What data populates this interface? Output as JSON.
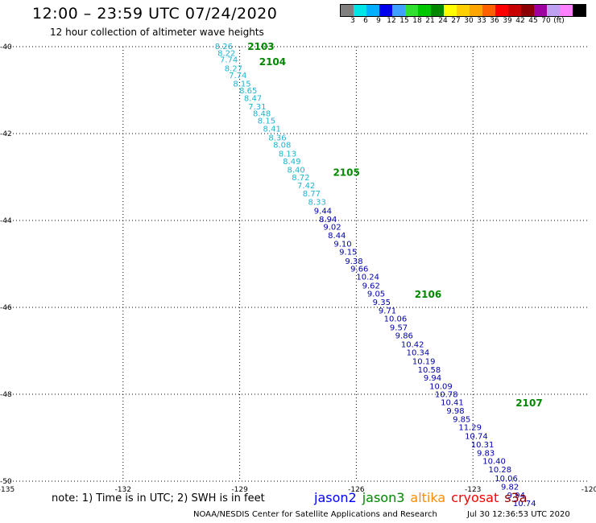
{
  "header": {
    "title": "12:00 – 23:59 UTC 07/24/2020",
    "subtitle": "12 hour collection of altimeter wave heights"
  },
  "color_scale": {
    "colors": [
      "#808080",
      "#00e5e5",
      "#00b0ff",
      "#0000ee",
      "#40a0ff",
      "#30e030",
      "#00c800",
      "#008800",
      "#ffff00",
      "#ffd000",
      "#ffa500",
      "#ff6000",
      "#ff0000",
      "#c80000",
      "#8b0000",
      "#a000a0",
      "#c0a0f0",
      "#ff80ff",
      "#000000"
    ],
    "labels": [
      "3",
      "6",
      "9",
      "12",
      "15",
      "18",
      "21",
      "24",
      "27",
      "30",
      "33",
      "36",
      "39",
      "42",
      "45",
      "70",
      "(ft)"
    ]
  },
  "footer": {
    "note": "note:  1) Time is in UTC;  2) SWH is in feet",
    "satellites": [
      {
        "name": "jason2",
        "color": "#0000ff"
      },
      {
        "name": "jason3",
        "color": "#008800"
      },
      {
        "name": "altika",
        "color": "#ff8c00"
      },
      {
        "name": "cryosat",
        "color": "#ff0000"
      },
      {
        "name": "s3a",
        "color": "#8b0000"
      }
    ],
    "credit": "NOAA/NESDIS Center for Satellite Applications and Research",
    "timestamp": "Jul 30 12:36:53 UTC 2020"
  },
  "chart_data": {
    "type": "scatter",
    "xlim": [
      -135,
      -120
    ],
    "ylim": [
      -50,
      -40
    ],
    "x_ticks": [
      -135,
      -132,
      -129,
      -126,
      -123,
      -120
    ],
    "y_ticks": [
      -40,
      -42,
      -44,
      -46,
      -48,
      -50
    ],
    "x_tick_labels": [
      "-135",
      "-132",
      "-129",
      "-126",
      "-123",
      "-120"
    ],
    "y_tick_labels": [
      "-40",
      "-42",
      "-44",
      "-46",
      "-48",
      "-50"
    ],
    "grid": true,
    "time_labels": [
      {
        "text": "2103",
        "lon": -128.8,
        "lat": -40.0,
        "color": "#008800"
      },
      {
        "text": "2104",
        "lon": -128.5,
        "lat": -40.35,
        "color": "#008800"
      },
      {
        "text": "2105",
        "lon": -126.6,
        "lat": -42.9,
        "color": "#008800"
      },
      {
        "text": "2106",
        "lon": -124.5,
        "lat": -45.7,
        "color": "#008800"
      },
      {
        "text": "2107",
        "lon": -121.9,
        "lat": -48.2,
        "color": "#008800"
      }
    ],
    "series": [
      {
        "name": "jason3",
        "color": "#1eb4d2",
        "points": [
          {
            "lon": -129.64,
            "lat": -40.0,
            "swh": "8.26"
          },
          {
            "lon": -129.57,
            "lat": -40.16,
            "swh": "8.22"
          },
          {
            "lon": -129.51,
            "lat": -40.31,
            "swh": "7.74"
          },
          {
            "lon": -129.39,
            "lat": -40.51,
            "swh": "8.27"
          },
          {
            "lon": -129.28,
            "lat": -40.67,
            "swh": "7.74"
          },
          {
            "lon": -129.17,
            "lat": -40.86,
            "swh": "8.15"
          },
          {
            "lon": -129.01,
            "lat": -41.02,
            "swh": "8.65"
          },
          {
            "lon": -128.89,
            "lat": -41.19,
            "swh": "8.47"
          },
          {
            "lon": -128.78,
            "lat": -41.39,
            "swh": "7.31"
          },
          {
            "lon": -128.66,
            "lat": -41.55,
            "swh": "8.48"
          },
          {
            "lon": -128.54,
            "lat": -41.71,
            "swh": "8.15"
          },
          {
            "lon": -128.4,
            "lat": -41.9,
            "swh": "8.41"
          },
          {
            "lon": -128.26,
            "lat": -42.1,
            "swh": "8.36"
          },
          {
            "lon": -128.14,
            "lat": -42.27,
            "swh": "8.08"
          },
          {
            "lon": -128.0,
            "lat": -42.47,
            "swh": "8.13"
          },
          {
            "lon": -127.89,
            "lat": -42.65,
            "swh": "8.49"
          },
          {
            "lon": -127.78,
            "lat": -42.84,
            "swh": "8.40"
          },
          {
            "lon": -127.66,
            "lat": -43.02,
            "swh": "8.72"
          },
          {
            "lon": -127.52,
            "lat": -43.2,
            "swh": "7.42"
          },
          {
            "lon": -127.38,
            "lat": -43.39,
            "swh": "8.77"
          },
          {
            "lon": -127.24,
            "lat": -43.58,
            "swh": "8.33"
          }
        ]
      },
      {
        "name": "jason3",
        "color": "#0000aa",
        "points": [
          {
            "lon": -127.09,
            "lat": -43.79,
            "swh": "9.44"
          },
          {
            "lon": -126.96,
            "lat": -43.98,
            "swh": "8.94"
          },
          {
            "lon": -126.85,
            "lat": -44.16,
            "swh": "9.02"
          },
          {
            "lon": -126.73,
            "lat": -44.35,
            "swh": "8.44"
          },
          {
            "lon": -126.58,
            "lat": -44.55,
            "swh": "9.10"
          },
          {
            "lon": -126.44,
            "lat": -44.73,
            "swh": "9.15"
          },
          {
            "lon": -126.29,
            "lat": -44.94,
            "swh": "9.38"
          },
          {
            "lon": -126.15,
            "lat": -45.12,
            "swh": "9.66"
          },
          {
            "lon": -126.0,
            "lat": -45.31,
            "swh": "10.24"
          },
          {
            "lon": -125.85,
            "lat": -45.51,
            "swh": "9.62"
          },
          {
            "lon": -125.72,
            "lat": -45.69,
            "swh": "9.05"
          },
          {
            "lon": -125.58,
            "lat": -45.89,
            "swh": "9.35"
          },
          {
            "lon": -125.43,
            "lat": -46.08,
            "swh": "9.71"
          },
          {
            "lon": -125.29,
            "lat": -46.27,
            "swh": "10.06"
          },
          {
            "lon": -125.14,
            "lat": -46.47,
            "swh": "9.57"
          },
          {
            "lon": -125.0,
            "lat": -46.66,
            "swh": "9.86"
          },
          {
            "lon": -124.85,
            "lat": -46.86,
            "swh": "10.42"
          },
          {
            "lon": -124.71,
            "lat": -47.05,
            "swh": "10.34"
          },
          {
            "lon": -124.56,
            "lat": -47.25,
            "swh": "10.19"
          },
          {
            "lon": -124.42,
            "lat": -47.44,
            "swh": "10.58"
          },
          {
            "lon": -124.27,
            "lat": -47.63,
            "swh": "9.94"
          },
          {
            "lon": -124.12,
            "lat": -47.82,
            "swh": "10.09"
          },
          {
            "lon": -123.98,
            "lat": -48.01,
            "swh": "10.78"
          },
          {
            "lon": -123.83,
            "lat": -48.19,
            "swh": "10.41"
          },
          {
            "lon": -123.68,
            "lat": -48.39,
            "swh": "9.98"
          },
          {
            "lon": -123.52,
            "lat": -48.58,
            "swh": "9.85"
          },
          {
            "lon": -123.37,
            "lat": -48.77,
            "swh": "11.29"
          },
          {
            "lon": -123.21,
            "lat": -48.97,
            "swh": "10.74"
          },
          {
            "lon": -123.05,
            "lat": -49.17,
            "swh": "10.31"
          },
          {
            "lon": -122.9,
            "lat": -49.36,
            "swh": "9.83"
          },
          {
            "lon": -122.75,
            "lat": -49.55,
            "swh": "10.40"
          },
          {
            "lon": -122.6,
            "lat": -49.74,
            "swh": "10.28"
          },
          {
            "lon": -122.44,
            "lat": -49.94,
            "swh": "10.06"
          },
          {
            "lon": -122.28,
            "lat": -50.14,
            "swh": "9.82"
          },
          {
            "lon": -122.12,
            "lat": -50.33,
            "swh": "9.94"
          },
          {
            "lon": -121.97,
            "lat": -50.52,
            "swh": "10.74"
          }
        ]
      }
    ]
  }
}
